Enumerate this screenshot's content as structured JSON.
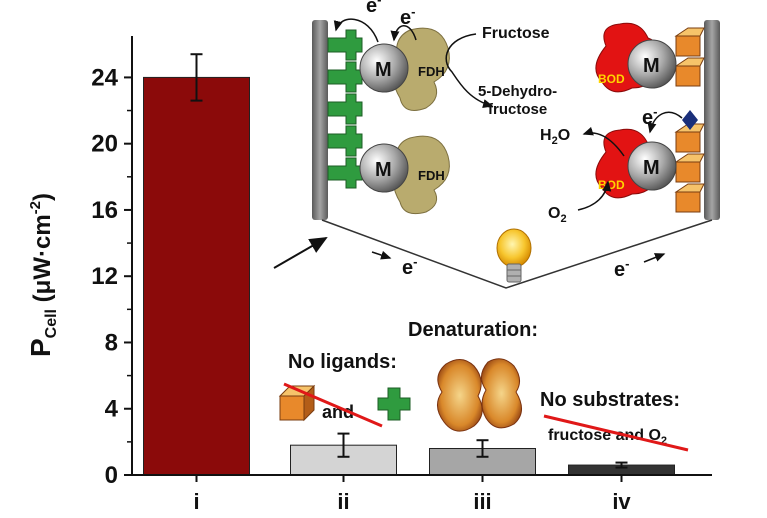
{
  "chart_data": {
    "type": "bar",
    "categories": [
      "i",
      "ii",
      "iii",
      "iv"
    ],
    "values": [
      24.0,
      1.8,
      1.6,
      0.6
    ],
    "errors": [
      1.4,
      0.7,
      0.5,
      0.15
    ],
    "bar_colors": [
      "#8b0a0a",
      "#d4d4d4",
      "#a6a6a6",
      "#333333"
    ],
    "ylabel_main": "P",
    "ylabel_sub": "Cell",
    "ylabel_unit_open": " (μW",
    "ylabel_dot": "·",
    "ylabel_unit_cm": "cm",
    "ylabel_exp": "-2",
    "ylabel_close": ")",
    "yticks": [
      0,
      4,
      8,
      12,
      16,
      20,
      24
    ],
    "ylim": [
      0,
      26.5
    ]
  },
  "annotations": {
    "electron": "e",
    "minus": "-",
    "fructose": "Fructose",
    "dehydro_line1": "5-Dehydro-",
    "dehydro_line2": "fructose",
    "m_label": "M",
    "fdh": "FDH",
    "bod": "BOD",
    "water_h": "H",
    "water_sub": "2",
    "water_o": "O",
    "oxygen_o": "O",
    "oxygen_sub": "2",
    "denaturation": "Denaturation:",
    "no_ligands": "No ligands:",
    "and_word": "and",
    "no_substrates": "No substrates:",
    "fructose_and": "fructose and O",
    "fructose_and_sub": "2"
  },
  "colors": {
    "electrode": "#7c7c7c",
    "green_ligand": "#2e8b3a",
    "orange_ligand": "#e07a20",
    "enzyme_fdh": "#b5a66a",
    "enzyme_bod": "#e01010",
    "metal_sphere": "#a8a8a8",
    "red_strike": "#e01818",
    "bulb": "#f4c430"
  }
}
